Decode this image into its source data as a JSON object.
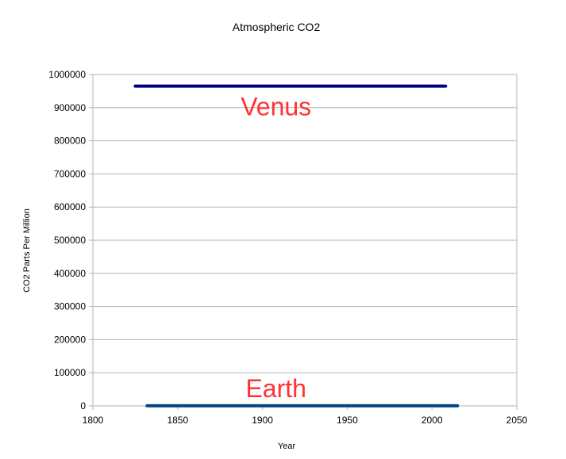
{
  "chart_data": {
    "type": "line",
    "title": "Atmospheric CO2",
    "xlabel": "Year",
    "ylabel": "CO2 Parts Per Million",
    "xlim": [
      1800,
      2050
    ],
    "ylim": [
      0,
      1000000
    ],
    "x_ticks": [
      1800,
      1850,
      1900,
      1950,
      2000,
      2050
    ],
    "y_ticks": [
      0,
      100000,
      200000,
      300000,
      400000,
      500000,
      600000,
      700000,
      800000,
      900000,
      1000000
    ],
    "grid": "horizontal",
    "legend": "none",
    "series": [
      {
        "name": "Venus",
        "x": [
          1825,
          2008
        ],
        "values": [
          965000,
          965000
        ],
        "color": "#00007f"
      },
      {
        "name": "Earth",
        "x": [
          1832,
          2015
        ],
        "values": [
          300,
          400
        ],
        "color": "#004586"
      }
    ],
    "annotations": [
      {
        "text": "Venus",
        "x": 1908,
        "y": 905000,
        "color": "#ff3333"
      },
      {
        "text": "Earth",
        "x": 1908,
        "y": 55000,
        "color": "#ff3333"
      }
    ]
  }
}
